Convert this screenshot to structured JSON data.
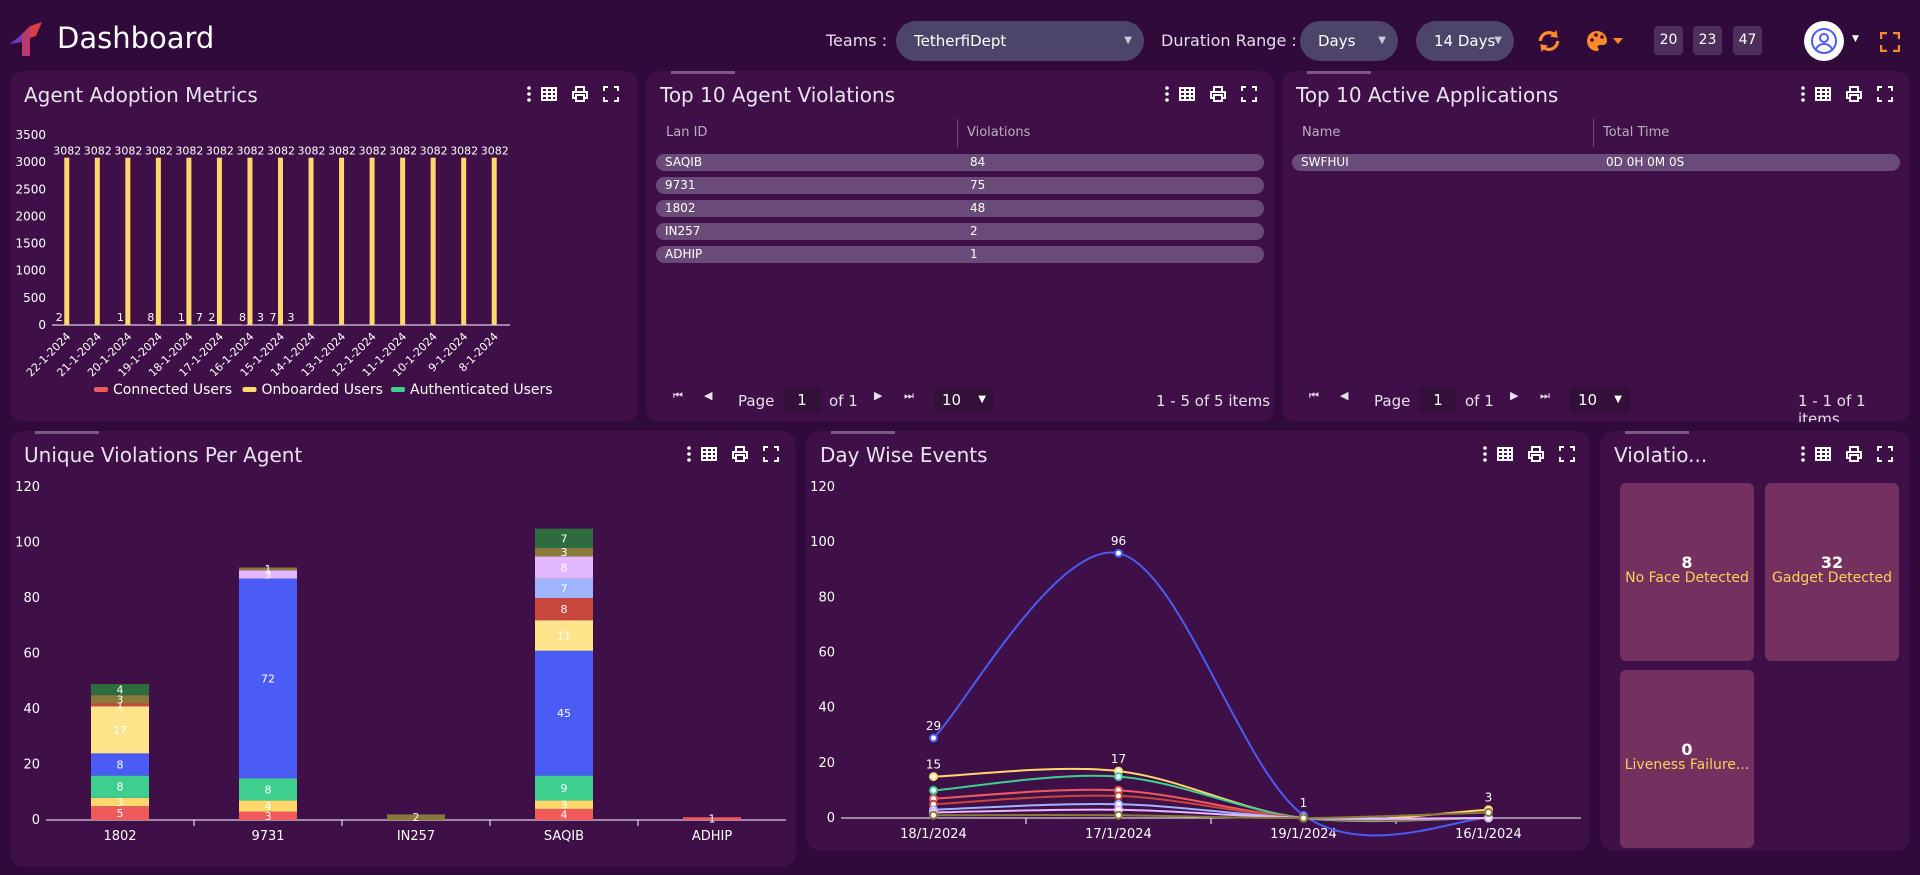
{
  "header": {
    "title": "Dashboard",
    "teams_label": "Teams :",
    "teams_value": "TetherfiDept",
    "duration_label": "Duration Range :",
    "duration_unit": "Days",
    "duration_value": "14 Days",
    "counters": [
      "20",
      "23",
      "47"
    ]
  },
  "panels": {
    "adoption": {
      "title": "Agent Adoption Metrics"
    },
    "violations": {
      "title": "Top 10 Agent Violations",
      "columns": [
        "Lan ID",
        "Violations"
      ],
      "rows": [
        [
          "SAQIB",
          "84"
        ],
        [
          "9731",
          "75"
        ],
        [
          "1802",
          "48"
        ],
        [
          "IN257",
          "2"
        ],
        [
          "ADHIP",
          "1"
        ]
      ],
      "pager": {
        "page_label": "Page",
        "page": "1",
        "of": "of 1",
        "size": "10",
        "summary": "1 - 5 of 5 items"
      }
    },
    "apps": {
      "title": "Top 10 Active Applications",
      "columns": [
        "Name",
        "Total Time"
      ],
      "rows": [
        [
          "SWFHUI",
          "0D 0H 0M 0S"
        ]
      ],
      "pager": {
        "page_label": "Page",
        "page": "1",
        "of": "of 1",
        "size": "10",
        "summary": "1 - 1 of 1 items"
      }
    },
    "unique": {
      "title": "Unique Violations Per Agent"
    },
    "daywise": {
      "title": "Day Wise Events"
    },
    "violation_tiles": {
      "title": "Violatio...",
      "tiles": [
        {
          "value": "8",
          "label": "No Face Detected"
        },
        {
          "value": "32",
          "label": "Gadget Detected"
        },
        {
          "value": "0",
          "label": "Liveness Failure..."
        }
      ]
    }
  },
  "colors": {
    "connected": "#f05a5a",
    "onboarded": "#ffd76a",
    "authenticated": "#3ecf8e",
    "blue": "#4a5cf5"
  },
  "chart_data": [
    {
      "type": "bar",
      "categories": [
        "22-1-2024",
        "21-1-2024",
        "20-1-2024",
        "19-1-2024",
        "18-1-2024",
        "17-1-2024",
        "16-1-2024",
        "15-1-2024",
        "14-1-2024",
        "13-1-2024",
        "12-1-2024",
        "11-1-2024",
        "10-1-2024",
        "9-1-2024",
        "8-1-2024"
      ],
      "series": [
        {
          "name": "Connected Users",
          "values": [
            2,
            0,
            1,
            8,
            1,
            2,
            8,
            7,
            0,
            0,
            0,
            0,
            0,
            0,
            0
          ]
        },
        {
          "name": "Onboarded Users",
          "values": [
            3082,
            3082,
            3082,
            3082,
            3082,
            3082,
            3082,
            3082,
            3082,
            3082,
            3082,
            3082,
            3082,
            3082,
            3082
          ]
        },
        {
          "name": "Authenticated Users",
          "values": [
            0,
            0,
            0,
            0,
            7,
            0,
            3,
            3,
            0,
            0,
            0,
            0,
            0,
            0,
            0
          ]
        }
      ],
      "ylim": [
        0,
        3500
      ],
      "yticks": [
        0,
        500,
        1000,
        1500,
        2000,
        2500,
        3000,
        3500
      ],
      "legend": "bottom"
    },
    {
      "type": "bar",
      "stacked": true,
      "categories": [
        "1802",
        "9731",
        "IN257",
        "SAQIB",
        "ADHIP"
      ],
      "series": [
        {
          "values": [
            5,
            3,
            0,
            4,
            1
          ],
          "color": "#f05a5a"
        },
        {
          "values": [
            3,
            4,
            0,
            3,
            0
          ],
          "color": "#ffd76a"
        },
        {
          "values": [
            8,
            8,
            0,
            9,
            0
          ],
          "color": "#3ecf8e"
        },
        {
          "values": [
            8,
            72,
            0,
            45,
            0
          ],
          "color": "#4a5cf5"
        },
        {
          "values": [
            17,
            0,
            0,
            11,
            0
          ],
          "color": "#ffe38a"
        },
        {
          "values": [
            1,
            0,
            0,
            8,
            0
          ],
          "color": "#c8473d"
        },
        {
          "values": [
            0,
            0,
            0,
            7,
            0
          ],
          "color": "#9fb4ff"
        },
        {
          "values": [
            0,
            3,
            0,
            8,
            0
          ],
          "color": "#e4b8ff"
        },
        {
          "values": [
            3,
            1,
            2,
            3,
            0
          ],
          "color": "#8a7a3a"
        },
        {
          "values": [
            4,
            0,
            0,
            7,
            0
          ],
          "color": "#2e6b3e"
        }
      ],
      "ylim": [
        0,
        120
      ],
      "yticks": [
        0,
        20,
        40,
        60,
        80,
        100,
        120
      ]
    },
    {
      "type": "line",
      "x": [
        "18/1/2024",
        "17/1/2024",
        "19/1/2024",
        "16/1/2024"
      ],
      "series": [
        {
          "values": [
            29,
            96,
            1,
            0
          ],
          "color": "#4a5cf5"
        },
        {
          "values": [
            15,
            17,
            0,
            3
          ],
          "color": "#ffd76a"
        },
        {
          "values": [
            10,
            15,
            0,
            0
          ],
          "color": "#3ecf8e"
        },
        {
          "values": [
            7,
            10,
            0,
            0
          ],
          "color": "#f05a5a"
        },
        {
          "values": [
            5,
            8,
            0,
            0
          ],
          "color": "#c8473d"
        },
        {
          "values": [
            3,
            5,
            0,
            0
          ],
          "color": "#9fb4ff"
        },
        {
          "values": [
            2,
            3,
            0,
            0
          ],
          "color": "#e4b8ff"
        },
        {
          "values": [
            1,
            1,
            0,
            2
          ],
          "color": "#8a7a3a"
        }
      ],
      "labels": [
        {
          "text": "29",
          "x": "18/1/2024",
          "y": 29
        },
        {
          "text": "15",
          "x": "18/1/2024",
          "y": 15
        },
        {
          "text": "96",
          "x": "17/1/2024",
          "y": 96
        },
        {
          "text": "17",
          "x": "17/1/2024",
          "y": 17
        },
        {
          "text": "1",
          "x": "19/1/2024",
          "y": 1
        },
        {
          "text": "3",
          "x": "16/1/2024",
          "y": 3
        }
      ],
      "ylim": [
        0,
        120
      ],
      "yticks": [
        0,
        20,
        40,
        60,
        80,
        100,
        120
      ]
    }
  ]
}
